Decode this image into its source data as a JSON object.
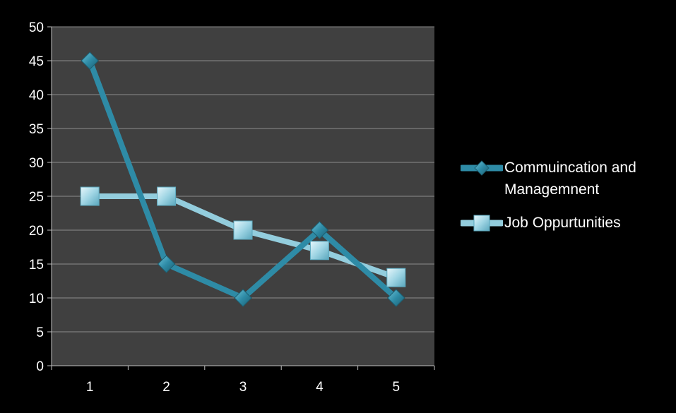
{
  "chart_data": {
    "type": "line",
    "categories": [
      "1",
      "2",
      "3",
      "4",
      "5"
    ],
    "ylim": [
      0,
      50
    ],
    "yticks": [
      0,
      5,
      10,
      15,
      20,
      25,
      30,
      35,
      40,
      45,
      50
    ],
    "grid": true,
    "legend_position": "right",
    "background_color": "#000000",
    "plot_area_color": "#404040",
    "series": [
      {
        "name": "Commuincation and Managemnent",
        "values": [
          45,
          15,
          10,
          20,
          10
        ],
        "color": "#2e8ba6",
        "marker": "diamond"
      },
      {
        "name": "Job Oppurtunities",
        "values": [
          25,
          25,
          20,
          17,
          13
        ],
        "color": "#93cddd",
        "marker": "square"
      }
    ]
  }
}
